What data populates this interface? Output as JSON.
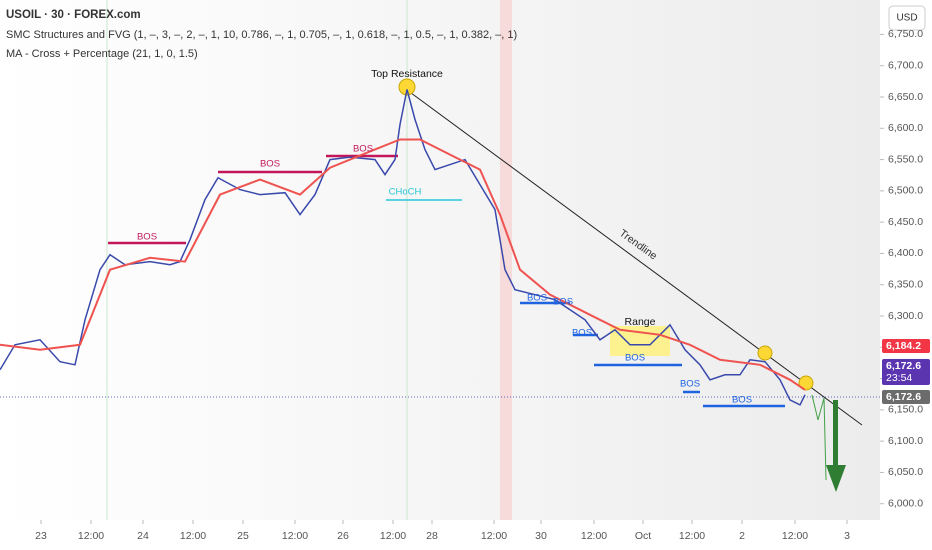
{
  "chart_data": {
    "type": "line",
    "title": "USOIL · 30 · FOREX.com",
    "indicators": [
      "SMC Structures and FVG (1, –, 3, –, 2, –, 1, 10, 0.786, –, 1, 0.705, –, 1, 0.618, –, 1, 0.5, –, 1, 0.382, –, 1)",
      "MA - Cross + Percentage (21, 1, 0, 1.5)"
    ],
    "currency": "USD",
    "x": [
      0,
      7.5,
      20,
      30,
      37.5,
      42.5,
      50,
      55,
      62.5,
      75,
      85,
      90,
      95,
      102.5,
      109,
      120,
      130,
      142.5,
      150,
      157.5,
      165,
      175,
      187.5,
      192.5,
      197.5,
      200,
      203.5,
      207.5,
      212.5,
      217.5,
      225,
      232.5,
      240,
      247.5,
      252.5,
      257.5,
      267.5,
      277.5,
      285,
      292.5,
      300,
      307.5,
      315,
      325,
      335,
      342.5,
      350,
      355,
      362.5,
      370,
      375,
      382.5,
      390,
      395,
      400,
      402.5
    ],
    "series": [
      {
        "color": "#3949ab",
        "values": [
          6214,
          6254,
          6262,
          6227,
          6222,
          6294,
          6374,
          6398,
          6382,
          6387,
          6382,
          6387,
          6422,
          6486,
          6521,
          6502,
          6494,
          6497,
          6462,
          6494,
          6550,
          6554,
          6550,
          6526,
          6550,
          6606,
          6662,
          6614,
          6566,
          6534,
          6542,
          6550,
          6510,
          6470,
          6374,
          6342,
          6334,
          6326,
          6310,
          6294,
          6262,
          6278,
          6254,
          6254,
          6286,
          6246,
          6222,
          6198,
          6206,
          6206,
          6230,
          6227,
          6198,
          6166,
          6158,
          6174
        ]
      },
      {
        "color": "#ef5350",
        "x": [
          0,
          20,
          40,
          55,
          75,
          92.5,
          110,
          130,
          150,
          165,
          185,
          200,
          210,
          225,
          240,
          250,
          260,
          275,
          295,
          310,
          330,
          345,
          360,
          380,
          395,
          402.5
        ],
        "values": [
          6254,
          6246,
          6254,
          6374,
          6393,
          6387,
          6494,
          6518,
          6494,
          6537,
          6563,
          6582,
          6582,
          6558,
          6534,
          6462,
          6374,
          6334,
          6302,
          6278,
          6270,
          6254,
          6230,
          6222,
          6198,
          6182
        ]
      }
    ],
    "annotations": [
      "Top Resistance",
      "Trendline",
      "Range",
      "CHoCH",
      "BOS",
      "BOS",
      "BOS",
      "BOS",
      "BOS",
      "BOS",
      "BOS",
      "BOS",
      "BOS"
    ],
    "xlim": [
      0,
      440
    ],
    "xticks": [
      {
        "value": 20.5,
        "label": "23"
      },
      {
        "value": 45.5,
        "label": "12:00"
      },
      {
        "value": 71.5,
        "label": "24"
      },
      {
        "value": 96.5,
        "label": "12:00"
      },
      {
        "value": 121.5,
        "label": "25"
      },
      {
        "value": 147.5,
        "label": "12:00"
      },
      {
        "value": 171.5,
        "label": "26"
      },
      {
        "value": 196.5,
        "label": "12:00"
      },
      {
        "value": 216,
        "label": "28"
      },
      {
        "value": 247,
        "label": "12:00"
      },
      {
        "value": 270.5,
        "label": "30"
      },
      {
        "value": 297,
        "label": "12:00"
      },
      {
        "value": 321.5,
        "label": "Oct"
      },
      {
        "value": 346,
        "label": "12:00"
      },
      {
        "value": 371,
        "label": "2"
      },
      {
        "value": 397.5,
        "label": "12:00"
      },
      {
        "value": 423.5,
        "label": "3"
      }
    ],
    "ylim": [
      5974,
      6805
    ],
    "yticks": [
      {
        "value": 6000,
        "label": "6,000.0"
      },
      {
        "value": 6050,
        "label": "6,050.0"
      },
      {
        "value": 6100,
        "label": "6,100.0"
      },
      {
        "value": 6150,
        "label": "6,150.0"
      },
      {
        "value": 6200,
        "label": "6,200.0"
      },
      {
        "value": 6250,
        "label": "6,250.0"
      },
      {
        "value": 6300,
        "label": "6,300.0"
      },
      {
        "value": 6350,
        "label": "6,350.0"
      },
      {
        "value": 6400,
        "label": "6,400.0"
      },
      {
        "value": 6450,
        "label": "6,450.0"
      },
      {
        "value": 6500,
        "label": "6,500.0"
      },
      {
        "value": 6550,
        "label": "6,550.0"
      },
      {
        "value": 6600,
        "label": "6,600.0"
      },
      {
        "value": 6650,
        "label": "6,650.0"
      },
      {
        "value": 6700,
        "label": "6,700.0"
      },
      {
        "value": 6750,
        "label": "6,750.0"
      }
    ],
    "price_labels": [
      {
        "value": 6184.2,
        "label": "6,184.2",
        "color": "#f23645"
      },
      {
        "value": 6172.6,
        "label": "6,172.6",
        "sub": "23:54",
        "color": "#5b34b0"
      },
      {
        "value": 6172.6,
        "label": "6,172.6",
        "color": "#6b6b6b"
      }
    ]
  }
}
